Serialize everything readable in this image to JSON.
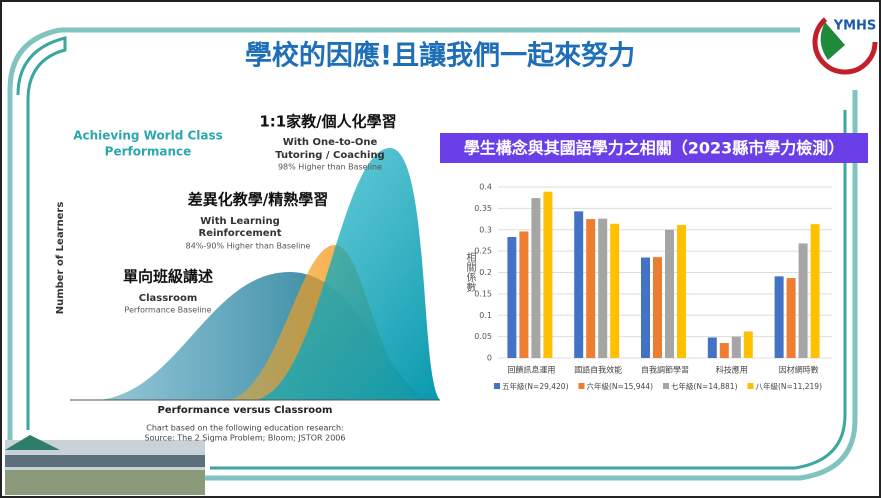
{
  "title": "學校的因應!且讓我們一起來努力",
  "logo": "YMHS",
  "left_figure": {
    "heading": [
      "Achieving World Class",
      "Performance"
    ],
    "tutoring_title": "1:1家教/個人化學習",
    "tutoring_desc": [
      "With One-to-One",
      "Tutoring / Coaching"
    ],
    "tutoring_note": "98% Higher than Baseline",
    "mastery_title": "差異化教學/精熟學習",
    "mastery_desc": [
      "With Learning",
      "Reinforcement"
    ],
    "mastery_note": "84%-90% Higher than Baseline",
    "classroom_title": "單向班級講述",
    "classroom_desc": "Classroom",
    "classroom_note": "Performance Baseline",
    "y_label": "Number of Learners",
    "x_label": "Performance versus Classroom",
    "source": [
      "Chart based on the following education research:",
      "Source: The 2 Sigma Problem; Bloom; JSTOR 2006"
    ]
  },
  "chart_data": {
    "type": "bar",
    "title": "學生構念與其國語學力之相關（2023縣市學力檢測）",
    "y_label": "相關係數",
    "categories": [
      "回饋訊息運用",
      "國語自我效能",
      "自我調節學習",
      "科技應用",
      "因材網時數"
    ],
    "series": [
      {
        "name": "五年級(N=29,420)",
        "color": "#4472c4",
        "values": [
          0.283,
          0.343,
          0.235,
          0.048,
          0.191
        ]
      },
      {
        "name": "六年級(N=15,944)",
        "color": "#ed7d31",
        "values": [
          0.296,
          0.325,
          0.236,
          0.035,
          0.187
        ]
      },
      {
        "name": "七年級(N=14,881)",
        "color": "#a5a5a5",
        "values": [
          0.374,
          0.326,
          0.3,
          0.05,
          0.268
        ]
      },
      {
        "name": "八年級(N=11,219)",
        "color": "#ffc000",
        "values": [
          0.389,
          0.314,
          0.311,
          0.062,
          0.313
        ]
      }
    ],
    "ylim": [
      0,
      0.4
    ],
    "yticks": [
      0,
      0.05,
      0.1,
      0.15,
      0.2,
      0.25,
      0.3,
      0.35,
      0.4
    ],
    "legend": "bottom"
  }
}
